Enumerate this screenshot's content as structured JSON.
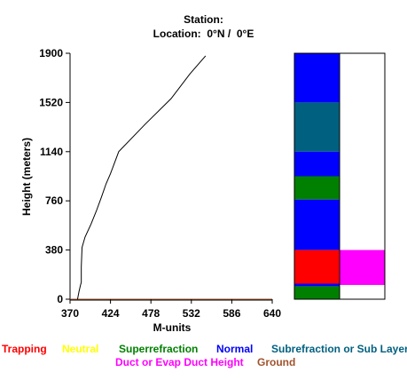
{
  "header": {
    "station": "Station:",
    "location_label": "Location:",
    "lat": "0°N",
    "separator": "/",
    "lon": "0°E"
  },
  "chart_data": {
    "type": "line",
    "xlabel": "M-units",
    "ylabel": "Height (meters)",
    "xlim": [
      370,
      640
    ],
    "ylim": [
      0,
      1900
    ],
    "xticks": [
      "370",
      "424",
      "478",
      "532",
      "586",
      "640"
    ],
    "yticks": [
      "0",
      "380",
      "760",
      "1140",
      "1520",
      "1900"
    ],
    "series": [
      {
        "x": [
          380,
          382,
          384,
          385,
          385,
          386,
          390,
          398,
          405,
          412,
          418,
          424,
          435,
          470,
          505,
          530,
          551
        ],
        "y": [
          0,
          60,
          110,
          130,
          250,
          400,
          480,
          580,
          680,
          790,
          890,
          970,
          1140,
          1350,
          1550,
          1740,
          1880
        ],
        "color": "#000000"
      }
    ],
    "ground_line": {
      "y": 0,
      "color": "#a0522d"
    },
    "layer_column": {
      "left": [
        {
          "from": 1520,
          "to": 1900,
          "color": "#0000ff"
        },
        {
          "from": 1140,
          "to": 1520,
          "color": "#006080"
        },
        {
          "from": 950,
          "to": 1140,
          "color": "#0000ff"
        },
        {
          "from": 770,
          "to": 950,
          "color": "#008000"
        },
        {
          "from": 380,
          "to": 770,
          "color": "#0000ff"
        },
        {
          "from": 120,
          "to": 380,
          "color": "#ff0000"
        },
        {
          "from": 100,
          "to": 120,
          "color": "#0000ff"
        },
        {
          "from": 0,
          "to": 100,
          "color": "#008000"
        }
      ],
      "right": [
        {
          "from": 110,
          "to": 380,
          "color": "#ff00ff"
        }
      ]
    }
  },
  "legend": {
    "trapping": {
      "label": "Trapping",
      "color": "#ff0000"
    },
    "neutral": {
      "label": "Neutral",
      "color": "#ffff00"
    },
    "superrefraction": {
      "label": "Superrefraction",
      "color": "#008000"
    },
    "normal": {
      "label": "Normal",
      "color": "#0000ff"
    },
    "subrefraction": {
      "label": "Subrefraction or Sub Layer",
      "color": "#006080"
    },
    "duct": {
      "label": "Duct or Evap Duct Height",
      "color": "#ff00ff"
    },
    "ground": {
      "label": "Ground",
      "color": "#a0522d"
    }
  }
}
